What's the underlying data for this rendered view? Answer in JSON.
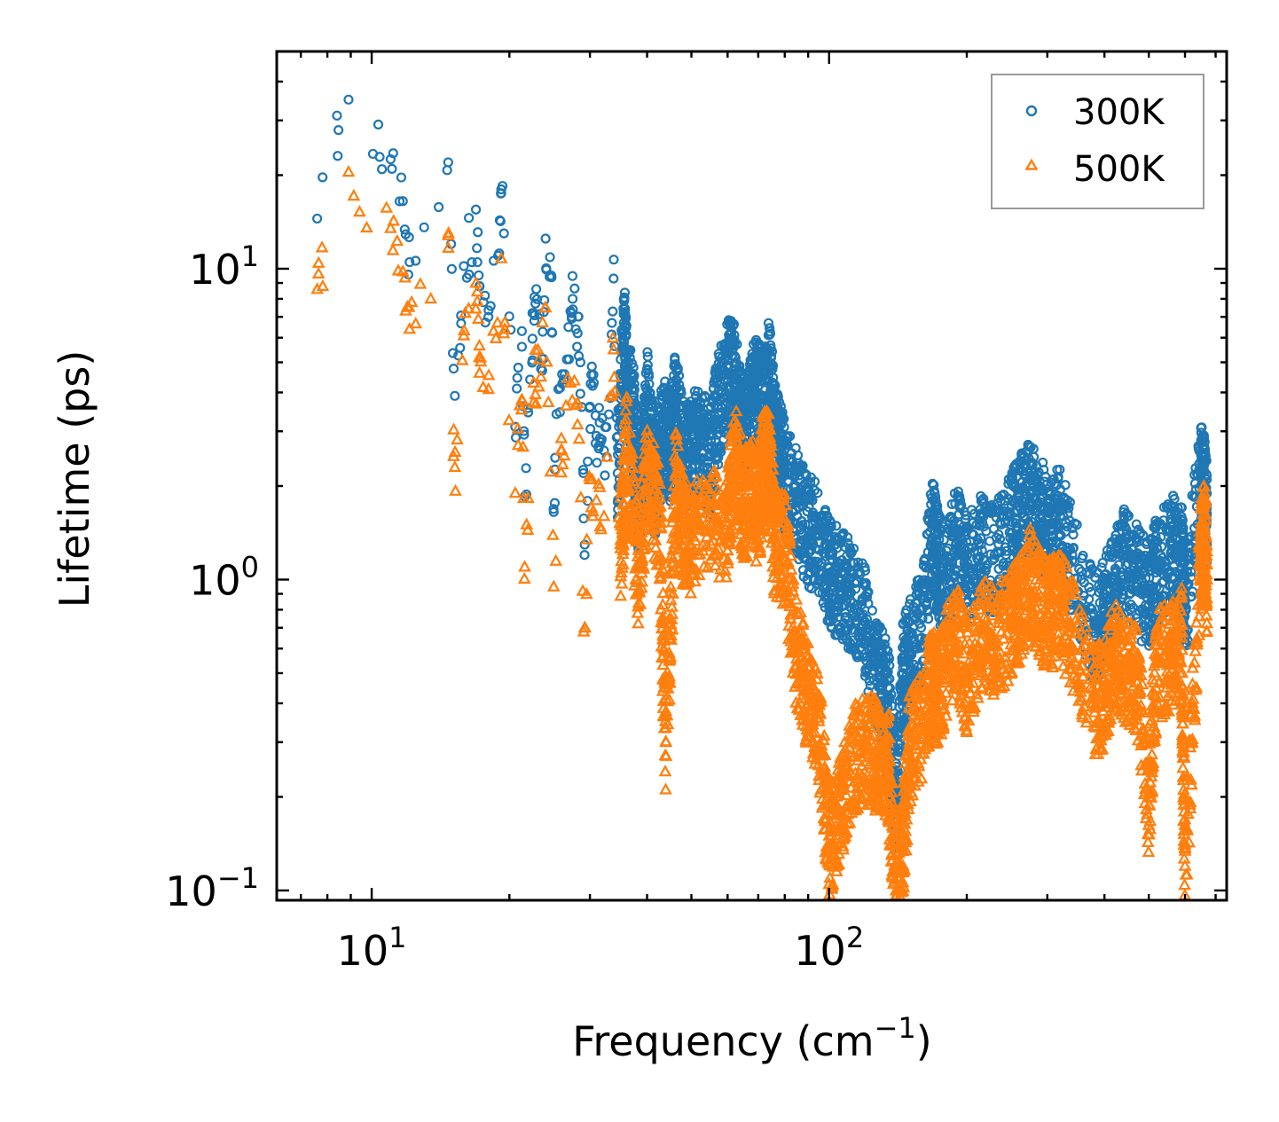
{
  "chart_data": {
    "type": "scatter",
    "xscale": "log",
    "yscale": "log",
    "xlabel": "Frequency (cm",
    "xlabel_sup": "−1",
    "xlabel_end": ")",
    "ylabel": "Lifetime (ps)",
    "xlim": [
      6.2,
      740
    ],
    "ylim": [
      0.093,
      50
    ],
    "xticks": [
      {
        "base": "10",
        "exp": "1",
        "value": 10
      },
      {
        "base": "10",
        "exp": "2",
        "value": 100
      }
    ],
    "yticks": [
      {
        "base": "10",
        "exp": "−1",
        "value": 0.1
      },
      {
        "base": "10",
        "exp": "0",
        "value": 1
      },
      {
        "base": "10",
        "exp": "1",
        "value": 10
      }
    ],
    "legend_position": "top-right",
    "series": [
      {
        "name": "300K",
        "marker": "circle",
        "color": "#1f77b4",
        "points": [
          [
            7.6,
            14.5
          ],
          [
            8.9,
            35
          ],
          [
            11.0,
            22.5
          ],
          [
            11.7,
            16.5
          ],
          [
            12.1,
            10.5
          ],
          [
            14.7,
            22
          ],
          [
            15.2,
            3.9
          ],
          [
            15.9,
            10.2
          ],
          [
            16.9,
            15.5
          ],
          [
            17.2,
            8.8
          ],
          [
            18.0,
            7.0
          ],
          [
            19.0,
            11.2
          ],
          [
            19.2,
            18
          ],
          [
            20.6,
            3.1
          ],
          [
            21.3,
            6.3
          ],
          [
            21.6,
            1.85
          ],
          [
            22.2,
            4.4
          ],
          [
            22.6,
            7.2
          ],
          [
            22.9,
            8.6
          ],
          [
            23.6,
            4.7
          ],
          [
            24.0,
            12.5
          ],
          [
            24.7,
            9.5
          ],
          [
            25.0,
            1.65
          ],
          [
            25.6,
            4.1
          ],
          [
            26.3,
            4.4
          ],
          [
            27.2,
            7.3
          ],
          [
            27.5,
            8.0
          ],
          [
            28.2,
            6.2
          ],
          [
            28.6,
            5.0
          ],
          [
            29.2,
            1.2
          ],
          [
            30.0,
            3.6
          ],
          [
            30.4,
            4.2
          ],
          [
            31.0,
            2.9
          ],
          [
            31.5,
            3.2
          ],
          [
            32.2,
            2.6
          ],
          [
            33.0,
            3.4
          ],
          [
            33.8,
            9.3
          ],
          [
            34.5,
            2.2
          ],
          [
            35.6,
            6.7
          ],
          [
            36.1,
            4.5
          ],
          [
            37.5,
            3.2
          ],
          [
            38.3,
            1.9
          ],
          [
            39.0,
            2.3
          ],
          [
            40.1,
            3.9
          ],
          [
            41.5,
            2.1
          ],
          [
            42.6,
            2.7
          ],
          [
            44.0,
            3.1
          ],
          [
            45.0,
            2.8
          ],
          [
            46.2,
            3.8
          ],
          [
            48.0,
            2.6
          ],
          [
            50.0,
            2.7
          ],
          [
            52.0,
            2.9
          ],
          [
            55.0,
            2.5
          ],
          [
            57.0,
            3.6
          ],
          [
            60.0,
            4.8
          ],
          [
            62.0,
            4.6
          ],
          [
            64.0,
            3.4
          ],
          [
            66.0,
            3.0
          ],
          [
            68.0,
            3.9
          ],
          [
            70.0,
            4.2
          ],
          [
            72.0,
            3.6
          ],
          [
            74.0,
            4.8
          ],
          [
            76.0,
            3.0
          ],
          [
            78.0,
            2.6
          ],
          [
            80.0,
            2.2
          ],
          [
            85.0,
            1.8
          ],
          [
            90.0,
            1.5
          ],
          [
            95.0,
            1.4
          ],
          [
            100.0,
            1.1
          ],
          [
            105.0,
            1.0
          ],
          [
            110.0,
            0.95
          ],
          [
            118.0,
            0.85
          ],
          [
            125.0,
            0.55
          ],
          [
            130.0,
            0.48
          ],
          [
            135.0,
            0.42
          ],
          [
            140.0,
            0.17
          ],
          [
            145.0,
            0.5
          ],
          [
            150.0,
            0.6
          ],
          [
            160.0,
            0.75
          ],
          [
            168.0,
            1.5
          ],
          [
            172.0,
            1.2
          ],
          [
            180.0,
            1.0
          ],
          [
            190.0,
            1.4
          ],
          [
            200.0,
            1.1
          ],
          [
            215.0,
            1.3
          ],
          [
            230.0,
            1.2
          ],
          [
            250.0,
            1.5
          ],
          [
            260.0,
            1.8
          ],
          [
            275.0,
            1.9
          ],
          [
            290.0,
            1.7
          ],
          [
            305.0,
            1.5
          ],
          [
            320.0,
            1.6
          ],
          [
            340.0,
            1.2
          ],
          [
            380.0,
            0.72
          ],
          [
            400.0,
            0.8
          ],
          [
            420.0,
            1.0
          ],
          [
            440.0,
            1.2
          ],
          [
            470.0,
            1.05
          ],
          [
            500.0,
            0.9
          ],
          [
            520.0,
            1.1
          ],
          [
            560.0,
            1.3
          ],
          [
            590.0,
            1.2
          ],
          [
            600.0,
            0.85
          ],
          [
            650.0,
            2.2
          ],
          [
            660.0,
            2.0
          ],
          [
            670.0,
            1.7
          ]
        ]
      },
      {
        "name": "500K",
        "marker": "triangle",
        "color": "#ff7f0e",
        "points": [
          [
            7.6,
            8.6
          ],
          [
            8.9,
            20.5
          ],
          [
            11.0,
            13.5
          ],
          [
            11.7,
            9.8
          ],
          [
            12.1,
            6.4
          ],
          [
            14.7,
            12.8
          ],
          [
            15.2,
            2.3
          ],
          [
            15.9,
            6.1
          ],
          [
            16.9,
            9.0
          ],
          [
            17.2,
            5.2
          ],
          [
            18.0,
            4.1
          ],
          [
            19.2,
            10.8
          ],
          [
            20.6,
            1.9
          ],
          [
            21.3,
            3.8
          ],
          [
            21.6,
            1.1
          ],
          [
            22.6,
            4.3
          ],
          [
            23.2,
            5.1
          ],
          [
            24.0,
            7.5
          ],
          [
            25.0,
            0.95
          ],
          [
            26.0,
            2.6
          ],
          [
            27.2,
            4.3
          ],
          [
            28.2,
            3.7
          ],
          [
            29.2,
            0.7
          ],
          [
            30.0,
            2.1
          ],
          [
            31.0,
            1.8
          ],
          [
            32.2,
            1.6
          ],
          [
            33.8,
            5.5
          ],
          [
            35.0,
            1.3
          ],
          [
            36.1,
            2.7
          ],
          [
            38.3,
            1.1
          ],
          [
            40.1,
            2.3
          ],
          [
            42.6,
            1.6
          ],
          [
            44.0,
            0.3
          ],
          [
            46.2,
            2.2
          ],
          [
            48.0,
            1.5
          ],
          [
            50.0,
            1.4
          ],
          [
            55.0,
            1.6
          ],
          [
            60.0,
            1.5
          ],
          [
            62.0,
            2.9
          ],
          [
            65.0,
            1.8
          ],
          [
            68.0,
            2.0
          ],
          [
            70.0,
            1.7
          ],
          [
            72.0,
            2.5
          ],
          [
            74.0,
            2.4
          ],
          [
            76.0,
            1.4
          ],
          [
            80.0,
            1.3
          ],
          [
            85.0,
            0.6
          ],
          [
            90.0,
            0.45
          ],
          [
            95.0,
            0.35
          ],
          [
            100.0,
            0.15
          ],
          [
            105.0,
            0.18
          ],
          [
            110.0,
            0.25
          ],
          [
            118.0,
            0.3
          ],
          [
            125.0,
            0.29
          ],
          [
            130.0,
            0.27
          ],
          [
            135.0,
            0.26
          ],
          [
            140.0,
            0.1
          ],
          [
            145.0,
            0.14
          ],
          [
            150.0,
            0.3
          ],
          [
            160.0,
            0.35
          ],
          [
            168.0,
            0.5
          ],
          [
            172.0,
            0.45
          ],
          [
            180.0,
            0.55
          ],
          [
            190.0,
            0.7
          ],
          [
            200.0,
            0.5
          ],
          [
            215.0,
            0.7
          ],
          [
            230.0,
            0.65
          ],
          [
            250.0,
            0.75
          ],
          [
            260.0,
            0.8
          ],
          [
            275.0,
            1.05
          ],
          [
            290.0,
            0.85
          ],
          [
            305.0,
            0.8
          ],
          [
            320.0,
            0.85
          ],
          [
            340.0,
            0.7
          ],
          [
            380.0,
            0.42
          ],
          [
            400.0,
            0.45
          ],
          [
            420.0,
            0.6
          ],
          [
            440.0,
            0.55
          ],
          [
            470.0,
            0.5
          ],
          [
            500.0,
            0.2
          ],
          [
            520.0,
            0.55
          ],
          [
            560.0,
            0.6
          ],
          [
            590.0,
            0.65
          ],
          [
            600.0,
            0.12
          ],
          [
            650.0,
            1.2
          ],
          [
            660.0,
            1.5
          ],
          [
            670.0,
            1.0
          ]
        ]
      }
    ]
  }
}
